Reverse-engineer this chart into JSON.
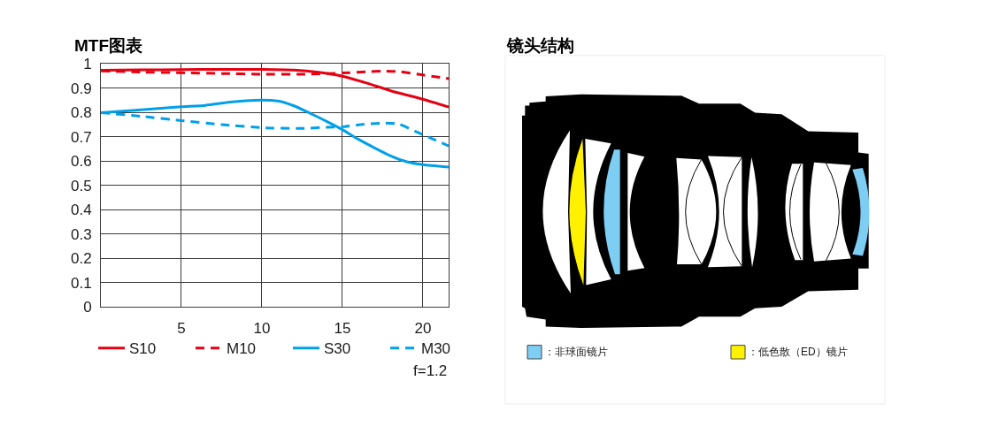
{
  "chart_data": [
    {
      "type": "line",
      "title": "MTF图表",
      "xlim": [
        0,
        21.6
      ],
      "xticks": [
        5,
        10,
        15,
        20
      ],
      "ylim": [
        0,
        1
      ],
      "yticks": [
        0,
        0.1,
        0.2,
        0.3,
        0.4,
        0.5,
        0.6,
        0.7,
        0.8,
        0.9,
        1
      ],
      "grid": true,
      "legend": "bottom",
      "annotations": [
        "f=1.2"
      ],
      "series": [
        {
          "name": "S10",
          "color": "#e60012",
          "line_style": "solid",
          "x": [
            0,
            2.5,
            5,
            7.5,
            10,
            12,
            13.5,
            15,
            16.5,
            18,
            20,
            21.6
          ],
          "values": [
            0.974,
            0.976,
            0.977,
            0.978,
            0.978,
            0.975,
            0.966,
            0.95,
            0.922,
            0.89,
            0.855,
            0.823
          ]
        },
        {
          "name": "M10",
          "color": "#e60012",
          "line_style": "dashed",
          "x": [
            0,
            2.5,
            5,
            7.5,
            10,
            12.5,
            15,
            16.5,
            17.5,
            18.5,
            20,
            21.6
          ],
          "values": [
            0.972,
            0.967,
            0.964,
            0.961,
            0.958,
            0.958,
            0.963,
            0.968,
            0.971,
            0.969,
            0.955,
            0.94
          ]
        },
        {
          "name": "S30",
          "color": "#00a0e9",
          "line_style": "solid",
          "x": [
            0,
            2.5,
            5,
            6.5,
            8,
            9,
            10,
            11,
            12,
            13,
            14,
            15,
            16,
            17,
            18,
            19,
            20,
            21.6
          ],
          "values": [
            0.8,
            0.812,
            0.824,
            0.83,
            0.843,
            0.849,
            0.852,
            0.848,
            0.828,
            0.797,
            0.765,
            0.73,
            0.69,
            0.655,
            0.622,
            0.598,
            0.586,
            0.576
          ]
        },
        {
          "name": "M30",
          "color": "#00a0e9",
          "line_style": "dashed",
          "x": [
            0,
            2.5,
            5,
            7.5,
            10,
            12.5,
            14,
            15,
            16,
            17.5,
            18.5,
            19.5,
            20.5,
            21.6
          ],
          "values": [
            0.8,
            0.785,
            0.767,
            0.751,
            0.738,
            0.735,
            0.74,
            0.742,
            0.75,
            0.757,
            0.753,
            0.724,
            0.695,
            0.663
          ]
        }
      ]
    },
    {
      "type": "other",
      "title": "镜头结构",
      "annotations": [
        "：非球面镜片",
        "：低色散（ED）镜片"
      ]
    }
  ]
}
